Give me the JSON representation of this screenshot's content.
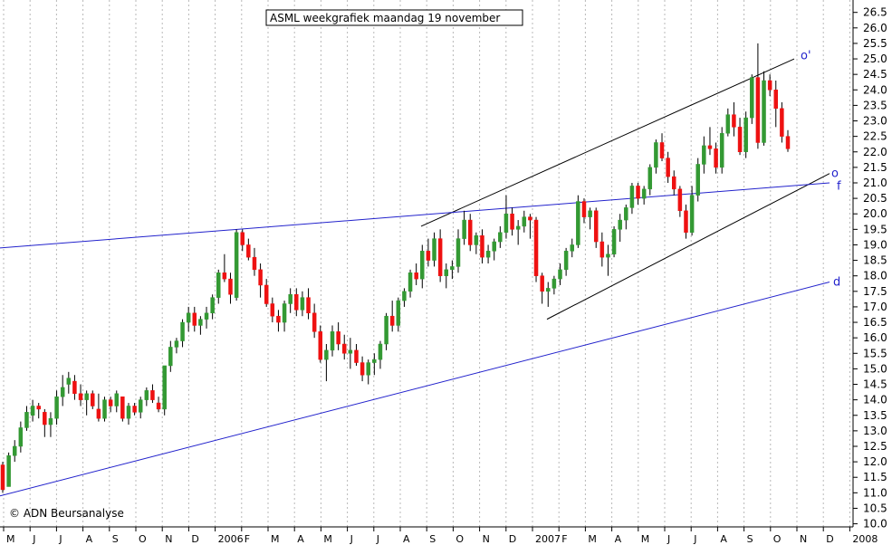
{
  "colors": {
    "background": "#ffffff",
    "grid": "#b8b8b8",
    "up_candle": "#339933",
    "down_candle": "#ee1111",
    "wick": "#000000",
    "trendline_blue": "#2222cc",
    "channel_black": "#000000"
  },
  "chart_data": {
    "type": "candlestick",
    "title": "ASML weekgrafiek maandag 19 november",
    "copyright": "© ADN Beursanalyse",
    "y_axis": {
      "side": "right",
      "ylim": [
        9.9,
        26.9
      ],
      "ticks": [
        "10.0",
        "10.5",
        "11.0",
        "11.5",
        "12.0",
        "12.5",
        "13.0",
        "13.5",
        "14.0",
        "14.5",
        "15.0",
        "15.5",
        "16.0",
        "16.5",
        "17.0",
        "17.5",
        "18.0",
        "18.5",
        "19.0",
        "19.5",
        "20.0",
        "20.5",
        "21.0",
        "21.5",
        "22.0",
        "22.5",
        "23.0",
        "23.5",
        "24.0",
        "24.5",
        "25.0",
        "25.5",
        "26.0",
        "26.5"
      ]
    },
    "x_axis": {
      "labels": [
        "M",
        "J",
        "J",
        "A",
        "S",
        "O",
        "N",
        "D",
        "2006",
        "F",
        "M",
        "A",
        "M",
        "J",
        "J",
        "A",
        "S",
        "O",
        "N",
        "D",
        "2007",
        "F",
        "M",
        "A",
        "M",
        "J",
        "J",
        "A",
        "S",
        "O",
        "N",
        "D",
        "2008"
      ]
    },
    "grid": "vertical dashed at month boundaries",
    "trendlines": [
      {
        "name": "o'",
        "from": [
          465,
          19.6
        ],
        "to": [
          877,
          25.0
        ]
      },
      {
        "name": "o",
        "from": [
          604,
          16.6
        ],
        "to": [
          916,
          21.3
        ]
      },
      {
        "name": "f",
        "from": [
          0,
          18.9
        ],
        "to": [
          916,
          21.0
        ]
      },
      {
        "name": "d",
        "from": [
          0,
          10.9
        ],
        "to": [
          916,
          17.8
        ]
      }
    ],
    "trendline_labels": [
      {
        "text": "o'",
        "x": 884,
        "y": 25.1
      },
      {
        "text": "o",
        "x": 918,
        "y": 21.3
      },
      {
        "text": "f",
        "x": 924,
        "y": 20.9
      },
      {
        "text": "d",
        "x": 920,
        "y": 17.8
      }
    ],
    "candles": [
      [
        11.9,
        12.0,
        11.0,
        11.1
      ],
      [
        11.2,
        12.3,
        11.2,
        12.2
      ],
      [
        12.2,
        12.7,
        12.0,
        12.5
      ],
      [
        12.5,
        13.3,
        12.3,
        13.1
      ],
      [
        13.1,
        13.8,
        13.0,
        13.6
      ],
      [
        13.5,
        14.0,
        13.3,
        13.8
      ],
      [
        13.8,
        13.9,
        13.4,
        13.7
      ],
      [
        13.6,
        13.7,
        12.8,
        13.2
      ],
      [
        13.2,
        13.6,
        12.8,
        13.4
      ],
      [
        13.4,
        14.3,
        13.2,
        14.1
      ],
      [
        14.1,
        14.8,
        13.8,
        14.4
      ],
      [
        14.5,
        14.9,
        14.2,
        14.7
      ],
      [
        14.6,
        14.8,
        14.0,
        14.2
      ],
      [
        14.2,
        14.5,
        13.8,
        14.0
      ],
      [
        14.0,
        14.3,
        13.5,
        14.2
      ],
      [
        14.2,
        14.3,
        13.7,
        13.8
      ],
      [
        13.7,
        14.2,
        13.3,
        13.4
      ],
      [
        13.4,
        14.1,
        13.3,
        14.0
      ],
      [
        14.0,
        14.1,
        13.6,
        13.8
      ],
      [
        13.8,
        14.3,
        13.6,
        14.2
      ],
      [
        14.1,
        14.1,
        13.3,
        13.4
      ],
      [
        13.4,
        13.9,
        13.2,
        13.8
      ],
      [
        13.8,
        13.9,
        13.5,
        13.6
      ],
      [
        13.6,
        14.1,
        13.4,
        14.0
      ],
      [
        14.0,
        14.4,
        13.8,
        14.3
      ],
      [
        14.3,
        14.5,
        13.9,
        14.0
      ],
      [
        13.9,
        14.1,
        13.6,
        13.7
      ],
      [
        13.7,
        15.1,
        13.5,
        15.1
      ],
      [
        15.1,
        15.9,
        14.9,
        15.7
      ],
      [
        15.7,
        16.0,
        15.5,
        15.9
      ],
      [
        15.9,
        16.6,
        15.7,
        16.5
      ],
      [
        16.5,
        17.0,
        16.2,
        16.8
      ],
      [
        16.8,
        17.0,
        16.2,
        16.4
      ],
      [
        16.4,
        16.7,
        16.1,
        16.6
      ],
      [
        16.6,
        17.0,
        16.3,
        16.8
      ],
      [
        16.8,
        17.4,
        16.6,
        17.3
      ],
      [
        17.3,
        18.2,
        17.1,
        18.1
      ],
      [
        18.1,
        18.7,
        17.8,
        17.9
      ],
      [
        17.9,
        18.1,
        17.1,
        17.4
      ],
      [
        17.3,
        19.5,
        17.2,
        19.4
      ],
      [
        19.4,
        19.5,
        18.8,
        19.0
      ],
      [
        19.0,
        19.2,
        18.5,
        18.6
      ],
      [
        18.6,
        18.9,
        18.0,
        18.2
      ],
      [
        18.2,
        18.4,
        17.3,
        17.7
      ],
      [
        17.7,
        17.9,
        17.0,
        17.1
      ],
      [
        17.1,
        17.3,
        16.5,
        16.7
      ],
      [
        16.7,
        16.9,
        16.2,
        16.5
      ],
      [
        16.5,
        17.2,
        16.2,
        17.1
      ],
      [
        17.1,
        17.6,
        16.8,
        17.4
      ],
      [
        17.4,
        17.6,
        16.7,
        16.9
      ],
      [
        16.9,
        17.5,
        16.7,
        17.3
      ],
      [
        17.3,
        17.6,
        16.6,
        16.8
      ],
      [
        16.8,
        17.1,
        16.0,
        16.2
      ],
      [
        16.2,
        16.4,
        15.2,
        15.3
      ],
      [
        15.3,
        15.8,
        14.6,
        15.6
      ],
      [
        15.6,
        16.4,
        15.4,
        16.2
      ],
      [
        16.2,
        16.5,
        15.6,
        15.8
      ],
      [
        15.8,
        16.1,
        15.3,
        15.5
      ],
      [
        15.5,
        16.0,
        15.0,
        15.6
      ],
      [
        15.6,
        15.8,
        15.1,
        15.2
      ],
      [
        15.2,
        15.4,
        14.6,
        14.8
      ],
      [
        14.8,
        15.3,
        14.5,
        15.2
      ],
      [
        15.2,
        15.5,
        14.8,
        15.3
      ],
      [
        15.3,
        15.9,
        15.0,
        15.8
      ],
      [
        15.8,
        16.8,
        15.6,
        16.7
      ],
      [
        16.7,
        17.2,
        16.2,
        16.4
      ],
      [
        16.4,
        17.3,
        16.2,
        17.2
      ],
      [
        17.2,
        17.6,
        17.0,
        17.5
      ],
      [
        17.5,
        18.2,
        17.3,
        18.1
      ],
      [
        18.1,
        18.4,
        17.7,
        17.9
      ],
      [
        17.9,
        19.0,
        17.6,
        18.8
      ],
      [
        18.8,
        19.2,
        18.3,
        18.5
      ],
      [
        18.5,
        19.4,
        18.3,
        19.2
      ],
      [
        19.2,
        19.5,
        17.8,
        18.0
      ],
      [
        18.0,
        18.4,
        17.6,
        18.2
      ],
      [
        18.2,
        18.5,
        17.9,
        18.3
      ],
      [
        18.3,
        19.5,
        18.1,
        19.2
      ],
      [
        19.2,
        20.1,
        19.0,
        19.8
      ],
      [
        19.8,
        20.0,
        18.8,
        19.0
      ],
      [
        19.0,
        19.4,
        18.7,
        19.3
      ],
      [
        19.3,
        19.5,
        18.4,
        18.6
      ],
      [
        18.6,
        19.0,
        18.4,
        18.8
      ],
      [
        18.8,
        19.2,
        18.5,
        19.1
      ],
      [
        19.1,
        19.6,
        18.9,
        19.4
      ],
      [
        19.4,
        20.6,
        19.2,
        20.0
      ],
      [
        20.0,
        20.2,
        19.3,
        19.5
      ],
      [
        19.5,
        19.8,
        19.0,
        19.6
      ],
      [
        19.6,
        20.1,
        19.4,
        19.9
      ],
      [
        19.9,
        20.0,
        19.2,
        19.8
      ],
      [
        19.8,
        19.9,
        17.8,
        18.0
      ],
      [
        18.0,
        18.1,
        17.1,
        17.5
      ],
      [
        17.5,
        17.8,
        17.0,
        17.6
      ],
      [
        17.6,
        18.0,
        17.4,
        17.9
      ],
      [
        17.9,
        18.4,
        17.7,
        18.2
      ],
      [
        18.2,
        18.9,
        18.0,
        18.8
      ],
      [
        18.8,
        19.2,
        18.6,
        19.0
      ],
      [
        19.0,
        20.6,
        18.9,
        20.4
      ],
      [
        20.4,
        20.5,
        19.7,
        19.9
      ],
      [
        19.9,
        20.2,
        19.5,
        20.1
      ],
      [
        20.1,
        20.2,
        18.9,
        19.1
      ],
      [
        19.1,
        19.4,
        18.3,
        18.6
      ],
      [
        18.6,
        19.0,
        18.0,
        18.7
      ],
      [
        18.7,
        19.6,
        18.6,
        19.5
      ],
      [
        19.5,
        20.0,
        19.1,
        19.8
      ],
      [
        19.8,
        20.3,
        19.5,
        20.2
      ],
      [
        20.2,
        21.0,
        20.0,
        20.9
      ],
      [
        20.9,
        21.0,
        20.3,
        20.5
      ],
      [
        20.5,
        20.9,
        20.3,
        20.8
      ],
      [
        20.8,
        21.6,
        20.6,
        21.5
      ],
      [
        21.5,
        22.4,
        21.3,
        22.3
      ],
      [
        22.3,
        22.6,
        21.7,
        21.8
      ],
      [
        21.8,
        22.0,
        21.0,
        21.2
      ],
      [
        21.2,
        21.4,
        20.6,
        20.8
      ],
      [
        20.8,
        20.9,
        19.9,
        20.1
      ],
      [
        20.1,
        20.3,
        19.2,
        19.4
      ],
      [
        19.4,
        20.9,
        19.3,
        20.6
      ],
      [
        20.6,
        21.8,
        20.4,
        21.6
      ],
      [
        21.6,
        22.5,
        21.3,
        22.2
      ],
      [
        22.2,
        22.8,
        21.9,
        22.1
      ],
      [
        22.1,
        22.3,
        21.3,
        21.5
      ],
      [
        21.5,
        22.8,
        21.3,
        22.6
      ],
      [
        22.6,
        23.4,
        22.5,
        23.2
      ],
      [
        23.2,
        23.6,
        22.5,
        22.8
      ],
      [
        22.8,
        23.1,
        21.9,
        22.0
      ],
      [
        22.0,
        23.3,
        21.8,
        23.1
      ],
      [
        23.1,
        24.5,
        22.9,
        24.4
      ],
      [
        24.4,
        25.5,
        22.1,
        22.3
      ],
      [
        22.3,
        24.6,
        22.2,
        24.3
      ],
      [
        24.3,
        24.5,
        23.8,
        24.0
      ],
      [
        24.0,
        24.3,
        22.8,
        23.4
      ],
      [
        23.4,
        23.6,
        22.3,
        22.5
      ],
      [
        22.5,
        22.7,
        22.0,
        22.1
      ]
    ]
  }
}
